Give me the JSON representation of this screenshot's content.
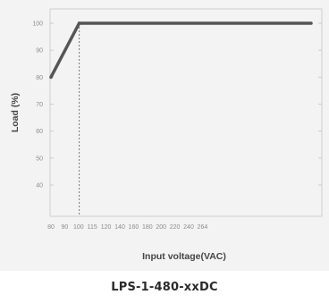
{
  "chart_data": {
    "type": "line",
    "title": "",
    "xlabel": "Input voltage(VAC)",
    "ylabel": "Load (%)",
    "xlim": [
      80,
      264
    ],
    "ylim": [
      30,
      100
    ],
    "x_ticks": [
      {
        "value": 80,
        "label": "80"
      },
      {
        "value": 90,
        "label": "90"
      },
      {
        "value": 100,
        "label": "100"
      },
      {
        "value": 115,
        "label": "115"
      },
      {
        "value": 120,
        "label": "120"
      },
      {
        "value": 140,
        "label": "140"
      },
      {
        "value": 160,
        "label": "160"
      },
      {
        "value": 180,
        "label": "180"
      },
      {
        "value": 200,
        "label": "200"
      },
      {
        "value": 220,
        "label": "220"
      },
      {
        "value": 240,
        "label": "240"
      },
      {
        "value": 264,
        "label": "264"
      }
    ],
    "y_ticks": [
      {
        "value": 100,
        "label": "100"
      },
      {
        "value": 90,
        "label": "90"
      },
      {
        "value": 80,
        "label": "80"
      },
      {
        "value": 70,
        "label": "70"
      },
      {
        "value": 60,
        "label": "60"
      },
      {
        "value": 50,
        "label": "50"
      },
      {
        "value": 40,
        "label": "40"
      }
    ],
    "series": [
      {
        "x": [
          80,
          100,
          264
        ],
        "y": [
          80,
          100,
          100
        ]
      }
    ],
    "reference_lines": [
      {
        "axis": "x",
        "value": 100,
        "style": "dotted"
      }
    ],
    "grid": false,
    "line_color": "#555555"
  },
  "model": "LPS-1-480-xxDC"
}
